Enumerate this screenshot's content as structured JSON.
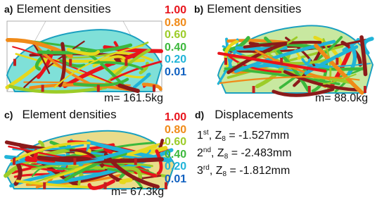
{
  "panels": [
    {
      "label": "a)",
      "title": "Element densities",
      "mass": "m= 161.5kg"
    },
    {
      "label": "b)",
      "title": "Element densities",
      "mass": "m= 88.0kg"
    },
    {
      "label": "c)",
      "title": "Element densities",
      "mass": "m= 67.3kg"
    }
  ],
  "legend": [
    {
      "text": "1.00",
      "color": "#e8141c"
    },
    {
      "text": "0.80",
      "color": "#f08a18"
    },
    {
      "text": "0.60",
      "color": "#9ccc28"
    },
    {
      "text": "0.40",
      "color": "#3cb83c"
    },
    {
      "text": "0.20",
      "color": "#20b4d8"
    },
    {
      "text": "0.01",
      "color": "#1060c0"
    }
  ],
  "displacements": {
    "label": "d)",
    "title": "Displacements",
    "rows": [
      {
        "ordinal": "1",
        "suffix": "st",
        "lead": ", Z",
        "sub": "8",
        "rest": " = -1.527mm"
      },
      {
        "ordinal": "2",
        "suffix": "nd",
        "lead": ", Z",
        "sub": "8",
        "rest": " = -2.483mm"
      },
      {
        "ordinal": "3",
        "suffix": "rd",
        "lead": ", Z",
        "sub": "8",
        "rest": " = -1.812mm"
      }
    ]
  }
}
